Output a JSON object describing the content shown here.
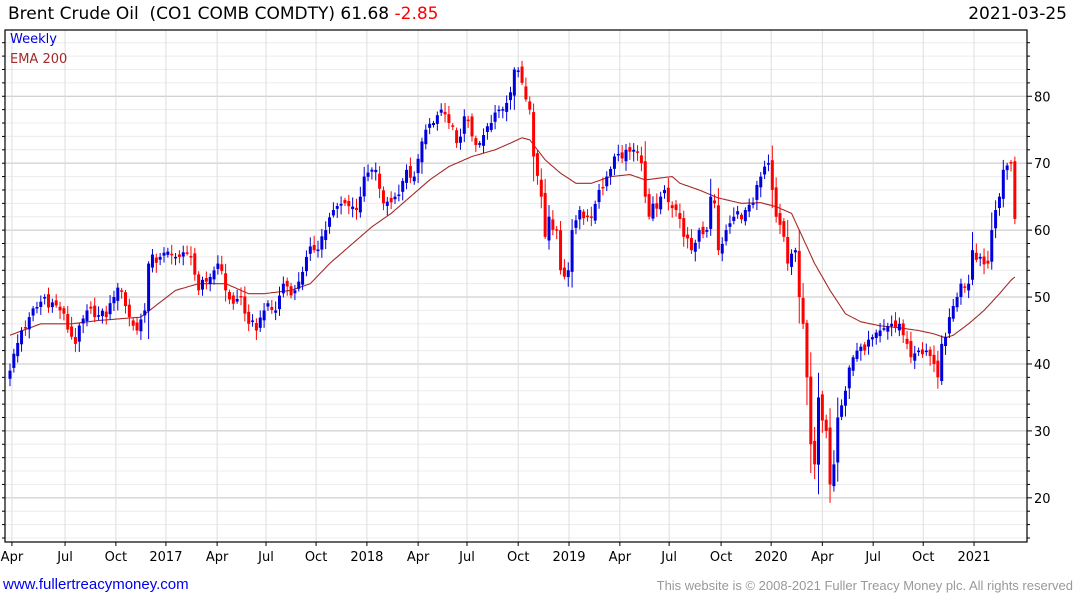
{
  "header": {
    "name": "Brent Crude Oil",
    "ticker": "(CO1 COMB COMDTY)",
    "last": "61.68",
    "change": "-2.85",
    "date": "2021-03-25"
  },
  "footer": {
    "site": "www.fullertreacymoney.com",
    "copyright": "This website is © 2008-2021 Fuller Treacy Money plc. All rights reserved"
  },
  "colors": {
    "up": "#0000dd",
    "down": "#ff0000",
    "ema": "#a52a2a"
  },
  "chart_data": {
    "type": "candlestick",
    "title": "Brent Crude Oil (CO1 COMB COMDTY) 61.68 -2.85",
    "period": "Weekly",
    "legend": [
      "Weekly",
      "EMA 200"
    ],
    "legend_position": "top-left",
    "x_unit": "weeks since 2016-03-25",
    "xlim": [
      0,
      261
    ],
    "ylim": [
      13.4,
      89.9
    ],
    "y_axis_side": "right",
    "grid": true,
    "y_ticks": [
      20,
      30,
      40,
      50,
      60,
      70,
      80
    ],
    "x_ticks": [
      {
        "w": 0.5,
        "label": "Apr"
      },
      {
        "w": 14.3,
        "label": "Jul"
      },
      {
        "w": 27.5,
        "label": "Oct"
      },
      {
        "w": 40.5,
        "label": "2017"
      },
      {
        "w": 53.8,
        "label": "Apr"
      },
      {
        "w": 66.5,
        "label": "Jul"
      },
      {
        "w": 79.5,
        "label": "Oct"
      },
      {
        "w": 92.7,
        "label": "2018"
      },
      {
        "w": 106,
        "label": "Apr"
      },
      {
        "w": 118.7,
        "label": "Jul"
      },
      {
        "w": 132,
        "label": "Oct"
      },
      {
        "w": 145.2,
        "label": "2019"
      },
      {
        "w": 158.4,
        "label": "Apr"
      },
      {
        "w": 171.2,
        "label": "Jul"
      },
      {
        "w": 184.7,
        "label": "Oct"
      },
      {
        "w": 197.7,
        "label": "2020"
      },
      {
        "w": 211,
        "label": "Apr"
      },
      {
        "w": 224.2,
        "label": "Jul"
      },
      {
        "w": 237.2,
        "label": "Oct"
      },
      {
        "w": 250.4,
        "label": "2021"
      }
    ],
    "close_anchors": [
      [
        0,
        39
      ],
      [
        3,
        45
      ],
      [
        5,
        47
      ],
      [
        9,
        50
      ],
      [
        13,
        48
      ],
      [
        17,
        43
      ],
      [
        20,
        48
      ],
      [
        22,
        47
      ],
      [
        25,
        47
      ],
      [
        27,
        50
      ],
      [
        29,
        51
      ],
      [
        31,
        47
      ],
      [
        33,
        45
      ],
      [
        35,
        48
      ],
      [
        36,
        55
      ],
      [
        39,
        56
      ],
      [
        43,
        56
      ],
      [
        47,
        56
      ],
      [
        49,
        51
      ],
      [
        52,
        53
      ],
      [
        54,
        55
      ],
      [
        56,
        51
      ],
      [
        58,
        49
      ],
      [
        60,
        50
      ],
      [
        62,
        46
      ],
      [
        64,
        45
      ],
      [
        66,
        48
      ],
      [
        69,
        48
      ],
      [
        71,
        52
      ],
      [
        74,
        51
      ],
      [
        77,
        56
      ],
      [
        79,
        57
      ],
      [
        82,
        60
      ],
      [
        84,
        63
      ],
      [
        87,
        64
      ],
      [
        90,
        63
      ],
      [
        92,
        68
      ],
      [
        95,
        69
      ],
      [
        97,
        64
      ],
      [
        100,
        65
      ],
      [
        103,
        69
      ],
      [
        105,
        68
      ],
      [
        108,
        75
      ],
      [
        110,
        76
      ],
      [
        112,
        78
      ],
      [
        114,
        76
      ],
      [
        116,
        73
      ],
      [
        118,
        77
      ],
      [
        120,
        74
      ],
      [
        122,
        73
      ],
      [
        125,
        76
      ],
      [
        127,
        78
      ],
      [
        129,
        79
      ],
      [
        131,
        84
      ],
      [
        133,
        82
      ],
      [
        135,
        78
      ],
      [
        136,
        71
      ],
      [
        138,
        65
      ],
      [
        139,
        59
      ],
      [
        140,
        62
      ],
      [
        142,
        60
      ],
      [
        143,
        54
      ],
      [
        145,
        54
      ],
      [
        146,
        60
      ],
      [
        148,
        63
      ],
      [
        151,
        62
      ],
      [
        153,
        66
      ],
      [
        155,
        68
      ],
      [
        157,
        71
      ],
      [
        160,
        72
      ],
      [
        162,
        72
      ],
      [
        164,
        70
      ],
      [
        165,
        65
      ],
      [
        166,
        62
      ],
      [
        169,
        65
      ],
      [
        170,
        66
      ],
      [
        173,
        63
      ],
      [
        175,
        59
      ],
      [
        177,
        57
      ],
      [
        179,
        60
      ],
      [
        181,
        60
      ],
      [
        182,
        65
      ],
      [
        183,
        64
      ],
      [
        184,
        57
      ],
      [
        186,
        60
      ],
      [
        188,
        62
      ],
      [
        191,
        63
      ],
      [
        193,
        64
      ],
      [
        195,
        68
      ],
      [
        197,
        70
      ],
      [
        198,
        66
      ],
      [
        199,
        62
      ],
      [
        201,
        59
      ],
      [
        202,
        55
      ],
      [
        204,
        57
      ],
      [
        205,
        50
      ],
      [
        206,
        46
      ],
      [
        207,
        38
      ],
      [
        208,
        28
      ],
      [
        209,
        25
      ],
      [
        210,
        35
      ],
      [
        212,
        30
      ],
      [
        213,
        22
      ],
      [
        214,
        25
      ],
      [
        215,
        32
      ],
      [
        217,
        36
      ],
      [
        219,
        41
      ],
      [
        220,
        42
      ],
      [
        222,
        42
      ],
      [
        224,
        44
      ],
      [
        226,
        45
      ],
      [
        229,
        46
      ],
      [
        231,
        46
      ],
      [
        233,
        43
      ],
      [
        234,
        41
      ],
      [
        236,
        42
      ],
      [
        238,
        42
      ],
      [
        240,
        40
      ],
      [
        241,
        38
      ],
      [
        242,
        43
      ],
      [
        244,
        47
      ],
      [
        246,
        50
      ],
      [
        247,
        52
      ],
      [
        249,
        52
      ],
      [
        250,
        57
      ],
      [
        252,
        56
      ],
      [
        254,
        55
      ],
      [
        255,
        60
      ],
      [
        256,
        63
      ],
      [
        257,
        65
      ],
      [
        258,
        69
      ],
      [
        260,
        70
      ],
      [
        261,
        61.68
      ]
    ],
    "ema200": [
      [
        0,
        44.3
      ],
      [
        8,
        46
      ],
      [
        16,
        46
      ],
      [
        23,
        46.5
      ],
      [
        34,
        47
      ],
      [
        43,
        51
      ],
      [
        49,
        52
      ],
      [
        56,
        52
      ],
      [
        62,
        50.5
      ],
      [
        66,
        50.5
      ],
      [
        73,
        51
      ],
      [
        78,
        52
      ],
      [
        83,
        55
      ],
      [
        88,
        57.5
      ],
      [
        94,
        60.5
      ],
      [
        99,
        62.5
      ],
      [
        104,
        65
      ],
      [
        109,
        67.5
      ],
      [
        114,
        69.5
      ],
      [
        120,
        71
      ],
      [
        126,
        72
      ],
      [
        130,
        73
      ],
      [
        133,
        73.8
      ],
      [
        135,
        73.5
      ],
      [
        139,
        70.5
      ],
      [
        143,
        68.5
      ],
      [
        147,
        67
      ],
      [
        151,
        67
      ],
      [
        156,
        68
      ],
      [
        161,
        68.3
      ],
      [
        165,
        67.5
      ],
      [
        169,
        67.8
      ],
      [
        172,
        68
      ],
      [
        174,
        67
      ],
      [
        179,
        66
      ],
      [
        184,
        64.8
      ],
      [
        190,
        64
      ],
      [
        195,
        64.1
      ],
      [
        199,
        63.5
      ],
      [
        203,
        62.5
      ],
      [
        205,
        60
      ],
      [
        209,
        55
      ],
      [
        213,
        51
      ],
      [
        217,
        47.5
      ],
      [
        221,
        46.3
      ],
      [
        226,
        45.7
      ],
      [
        231,
        45.4
      ],
      [
        236,
        45
      ],
      [
        240,
        44.5
      ],
      [
        243,
        43.9
      ],
      [
        245,
        44.3
      ],
      [
        249,
        46
      ],
      [
        253,
        48
      ],
      [
        257,
        50.5
      ],
      [
        260,
        52.5
      ],
      [
        261,
        53
      ]
    ]
  }
}
